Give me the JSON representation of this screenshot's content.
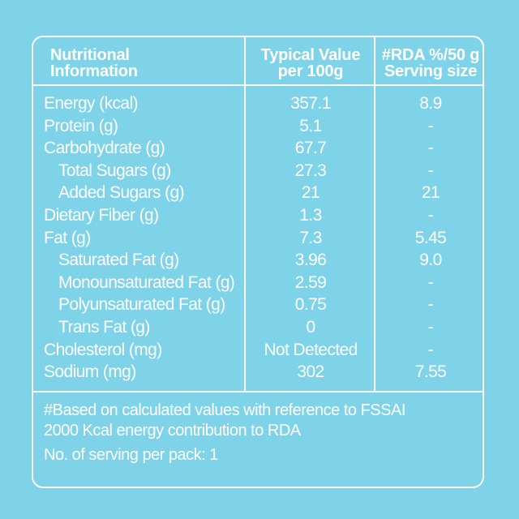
{
  "headers": {
    "col1": [
      "Nutritional",
      "Information"
    ],
    "col2": [
      "Typical Value",
      "per 100g"
    ],
    "col3": [
      "#RDA %/50 g",
      "Serving size"
    ]
  },
  "rows": [
    {
      "name": "Energy (kcal)",
      "value": "357.1",
      "rda": "8.9",
      "sub": false
    },
    {
      "name": "Protein (g)",
      "value": "5.1",
      "rda": "-",
      "sub": false
    },
    {
      "name": "Carbohydrate (g)",
      "value": "67.7",
      "rda": "-",
      "sub": false
    },
    {
      "name": "Total Sugars (g)",
      "value": "27.3",
      "rda": "-",
      "sub": true
    },
    {
      "name": "Added Sugars (g)",
      "value": "21",
      "rda": "21",
      "sub": true
    },
    {
      "name": "Dietary Fiber (g)",
      "value": "1.3",
      "rda": "-",
      "sub": false
    },
    {
      "name": "Fat (g)",
      "value": "7.3",
      "rda": "5.45",
      "sub": false
    },
    {
      "name": "Saturated Fat (g)",
      "value": "3.96",
      "rda": "9.0",
      "sub": true
    },
    {
      "name": "Monounsaturated Fat (g)",
      "value": "2.59",
      "rda": "-",
      "sub": true
    },
    {
      "name": "Polyunsaturated Fat (g)",
      "value": "0.75",
      "rda": "-",
      "sub": true
    },
    {
      "name": "Trans Fat (g)",
      "value": "0",
      "rda": "-",
      "sub": true
    },
    {
      "name": "Cholesterol (mg)",
      "value": "Not Detected",
      "rda": "-",
      "sub": false
    },
    {
      "name": "Sodium (mg)",
      "value": "302",
      "rda": "7.55",
      "sub": false
    }
  ],
  "footer": {
    "note_line1": "#Based on calculated values with reference to FSSAI",
    "note_line2": "2000 Kcal energy contribution to RDA",
    "servings": "No. of serving per pack: 1"
  },
  "colors": {
    "background": "#7ed3e8",
    "text": "#ffffff"
  }
}
